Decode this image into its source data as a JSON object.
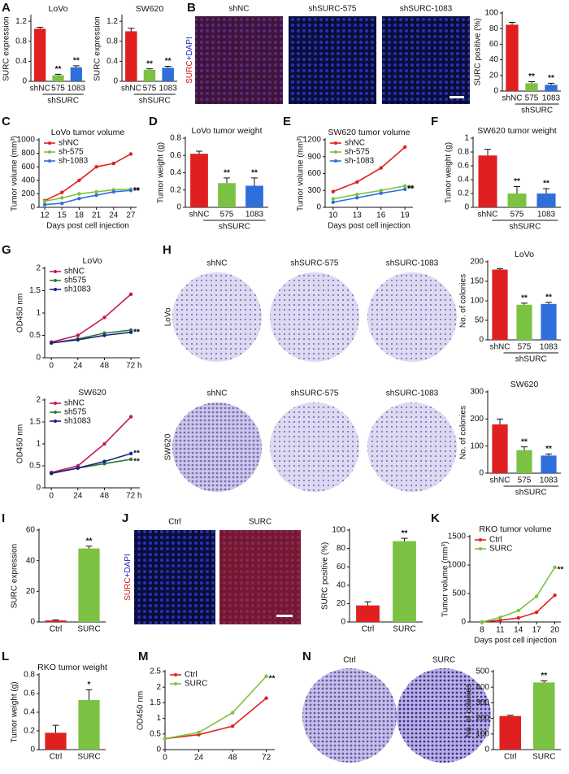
{
  "chart_data": [
    {
      "panel": "A",
      "type": "bar",
      "title": "LoVo",
      "ylabel": "SURC expression",
      "categories": [
        "shNC",
        "575",
        "1083"
      ],
      "values": [
        1.05,
        0.12,
        0.28
      ],
      "errors": [
        0.03,
        0.02,
        0.03
      ],
      "colors": [
        "#e02020",
        "#7cc242",
        "#2f6fdc"
      ],
      "annotations": [
        null,
        "**",
        "**"
      ],
      "group_label": "shSURC",
      "ylim": [
        0,
        1.3
      ],
      "yticks": [
        0,
        0.4,
        0.8,
        1.2
      ]
    },
    {
      "type": "bar",
      "title": "SW620",
      "ylabel": "SURC expression",
      "categories": [
        "shNC",
        "575",
        "1083"
      ],
      "values": [
        1.0,
        0.23,
        0.27
      ],
      "errors": [
        0.06,
        0.02,
        0.03
      ],
      "colors": [
        "#e02020",
        "#7cc242",
        "#2f6fdc"
      ],
      "annotations": [
        null,
        "**",
        "**"
      ],
      "group_label": "shSURC",
      "ylim": [
        0,
        1.3
      ],
      "yticks": [
        0,
        0.4,
        0.8,
        1.2
      ]
    },
    {
      "panel": "B",
      "type": "bar",
      "ylabel": "SURC positive (%)",
      "categories": [
        "shNC",
        "575",
        "1083"
      ],
      "values": [
        85,
        10,
        8
      ],
      "errors": [
        3,
        2,
        2
      ],
      "colors": [
        "#e02020",
        "#7cc242",
        "#2f6fdc"
      ],
      "annotations": [
        null,
        "**",
        "**"
      ],
      "group_label": "shSURC",
      "ylim": [
        0,
        100
      ],
      "yticks": [
        0,
        20,
        40,
        60,
        80,
        100
      ]
    },
    {
      "panel": "C",
      "type": "line",
      "title": "LoVo tumor volume",
      "ylabel": "Tumor volume (mm³)",
      "xlabel": "Days post cell injection",
      "x": [
        12,
        15,
        18,
        21,
        24,
        27
      ],
      "xlim": [
        11,
        28
      ],
      "xticks": [
        12,
        15,
        18,
        21,
        24,
        27
      ],
      "ylim": [
        0,
        1000
      ],
      "yticks": [
        0,
        200,
        400,
        600,
        800,
        1000
      ],
      "legend": "upper left",
      "series": [
        {
          "name": "shNC",
          "color": "#e02020",
          "values": [
            100,
            220,
            400,
            600,
            650,
            790
          ]
        },
        {
          "name": "sh-575",
          "color": "#7cc242",
          "values": [
            90,
            140,
            200,
            230,
            260,
            270
          ],
          "annotation": "**"
        },
        {
          "name": "sh-1083",
          "color": "#2f6fdc",
          "values": [
            40,
            60,
            130,
            180,
            230,
            250
          ],
          "annotation": "**"
        }
      ]
    },
    {
      "panel": "D",
      "type": "bar",
      "title": "LoVo tumor weight",
      "ylabel": "Tumor weight (g)",
      "categories": [
        "shNC",
        "575",
        "1083"
      ],
      "values": [
        0.62,
        0.28,
        0.25
      ],
      "errors": [
        0.03,
        0.06,
        0.09
      ],
      "colors": [
        "#e02020",
        "#7cc242",
        "#2f6fdc"
      ],
      "annotations": [
        null,
        "**",
        "**"
      ],
      "group_label": "shSURC",
      "ylim": [
        0,
        0.8
      ],
      "yticks": [
        0,
        0.2,
        0.4,
        0.6,
        0.8
      ]
    },
    {
      "panel": "E",
      "type": "line",
      "title": "SW620 tumor volume",
      "ylabel": "Tumor volume (mm³)",
      "xlabel": "Days post cell injection",
      "x": [
        10,
        13,
        16,
        19
      ],
      "xlim": [
        9,
        20
      ],
      "xticks": [
        10,
        13,
        16,
        19
      ],
      "ylim": [
        0,
        1200
      ],
      "yticks": [
        0,
        300,
        600,
        900,
        1200
      ],
      "legend": "upper left",
      "series": [
        {
          "name": "shNC",
          "color": "#e02020",
          "values": [
            280,
            450,
            700,
            1070
          ]
        },
        {
          "name": "sh-575",
          "color": "#7cc242",
          "values": [
            150,
            230,
            300,
            380
          ],
          "annotation": "**"
        },
        {
          "name": "sh-1083",
          "color": "#2f6fdc",
          "values": [
            90,
            170,
            250,
            320
          ],
          "annotation": "**"
        }
      ]
    },
    {
      "panel": "F",
      "type": "bar",
      "title": "SW620 tumor weight",
      "ylabel": "Tumor weight (g)",
      "categories": [
        "shNC",
        "575",
        "1083"
      ],
      "values": [
        0.75,
        0.2,
        0.2
      ],
      "errors": [
        0.09,
        0.1,
        0.07
      ],
      "colors": [
        "#e02020",
        "#7cc242",
        "#2f6fdc"
      ],
      "annotations": [
        null,
        "**",
        "**"
      ],
      "group_label": "shSURC",
      "ylim": [
        0,
        1.0
      ],
      "yticks": [
        0,
        0.2,
        0.4,
        0.6,
        0.8,
        1.0
      ]
    },
    {
      "panel": "G",
      "type": "line",
      "title": "LoVo",
      "ylabel": "OD450 nm",
      "x": [
        0,
        24,
        48,
        72
      ],
      "xlim": [
        -6,
        80
      ],
      "xticks": [
        0,
        24,
        48,
        {
          "value": 72,
          "label": "72 h"
        }
      ],
      "ylim": [
        0,
        2
      ],
      "yticks": [
        0,
        0.5,
        1,
        1.5,
        2
      ],
      "legend": "upper left",
      "series": [
        {
          "name": "shNC",
          "color": "#c2185b",
          "values": [
            0.35,
            0.5,
            0.9,
            1.42
          ]
        },
        {
          "name": "sh575",
          "color": "#2e7d32",
          "values": [
            0.33,
            0.42,
            0.55,
            0.62
          ],
          "annotation": "**"
        },
        {
          "name": "sh1083",
          "color": "#1a237e",
          "values": [
            0.33,
            0.4,
            0.5,
            0.57
          ],
          "annotation": "**"
        }
      ]
    },
    {
      "type": "line",
      "title": "SW620",
      "ylabel": "OD450 nm",
      "x": [
        0,
        24,
        48,
        72
      ],
      "xlim": [
        -6,
        80
      ],
      "xticks": [
        0,
        24,
        48,
        {
          "value": 72,
          "label": "72 h"
        }
      ],
      "ylim": [
        0,
        2
      ],
      "yticks": [
        0,
        0.5,
        1,
        1.5,
        2
      ],
      "legend": "upper left",
      "series": [
        {
          "name": "shNC",
          "color": "#c2185b",
          "values": [
            0.35,
            0.5,
            1.0,
            1.62
          ]
        },
        {
          "name": "sh575",
          "color": "#2e7d32",
          "values": [
            0.33,
            0.45,
            0.55,
            0.65
          ],
          "annotation": "**"
        },
        {
          "name": "sh1083",
          "color": "#1a237e",
          "values": [
            0.33,
            0.45,
            0.6,
            0.78
          ],
          "annotation": "**"
        }
      ]
    },
    {
      "panel": "H",
      "type": "bar",
      "title": "LoVo",
      "ylabel": "No. of colonies",
      "categories": [
        "shNC",
        "575",
        "1083"
      ],
      "values": [
        180,
        90,
        92
      ],
      "errors": [
        2,
        4,
        4
      ],
      "colors": [
        "#e02020",
        "#7cc242",
        "#2f6fdc"
      ],
      "annotations": [
        null,
        "**",
        "**"
      ],
      "group_label": "shSURC",
      "ylim": [
        0,
        200
      ],
      "yticks": [
        0,
        50,
        100,
        150,
        200
      ]
    },
    {
      "type": "bar",
      "title": "SW620",
      "ylabel": "No. of colonies",
      "categories": [
        "shNC",
        "575",
        "1083"
      ],
      "values": [
        180,
        85,
        65
      ],
      "errors": [
        20,
        12,
        6
      ],
      "colors": [
        "#e02020",
        "#7cc242",
        "#2f6fdc"
      ],
      "annotations": [
        null,
        "**",
        "**"
      ],
      "group_label": "shSURC",
      "ylim": [
        0,
        300
      ],
      "yticks": [
        0,
        100,
        200,
        300
      ]
    },
    {
      "panel": "I",
      "type": "bar",
      "ylabel": "SURC expression",
      "categories": [
        "Ctrl",
        "SURC"
      ],
      "values": [
        1,
        48
      ],
      "errors": [
        0.3,
        1.5
      ],
      "colors": [
        "#e02020",
        "#7cc242"
      ],
      "annotations": [
        null,
        "**"
      ],
      "ylim": [
        0,
        60
      ],
      "yticks": [
        0,
        20,
        40,
        60
      ]
    },
    {
      "panel": "J",
      "type": "bar",
      "ylabel": "SURC positive (%)",
      "categories": [
        "Ctrl",
        "SURC"
      ],
      "values": [
        18,
        88
      ],
      "errors": [
        4,
        3
      ],
      "colors": [
        "#e02020",
        "#7cc242"
      ],
      "annotations": [
        null,
        "**"
      ],
      "ylim": [
        0,
        100
      ],
      "yticks": [
        0,
        20,
        40,
        60,
        80,
        100
      ]
    },
    {
      "panel": "K",
      "type": "line",
      "title": "RKO tumor volume",
      "ylabel": "Tumor volume (mm³)",
      "xlabel": "Days post cell injection",
      "x": [
        8,
        11,
        14,
        17,
        20
      ],
      "xlim": [
        6,
        21
      ],
      "xticks": [
        8,
        11,
        14,
        17,
        20
      ],
      "ylim": [
        0,
        1500
      ],
      "yticks": [
        0,
        500,
        1000,
        1500
      ],
      "legend": "upper left",
      "series": [
        {
          "name": "Ctrl",
          "color": "#e02020",
          "values": [
            0,
            30,
            70,
            170,
            470
          ]
        },
        {
          "name": "SURC",
          "color": "#7cc242",
          "values": [
            0,
            80,
            200,
            450,
            960
          ],
          "annotation": "**"
        }
      ]
    },
    {
      "panel": "L",
      "type": "bar",
      "title": "RKO tumor weight",
      "ylabel": "Tumor weight (g)",
      "categories": [
        "Ctrl",
        "SURC"
      ],
      "values": [
        0.18,
        0.53
      ],
      "errors": [
        0.08,
        0.11
      ],
      "colors": [
        "#e02020",
        "#7cc242"
      ],
      "annotations": [
        null,
        "*"
      ],
      "ylim": [
        0,
        0.8
      ],
      "yticks": [
        0,
        0.2,
        0.4,
        0.6,
        0.8
      ]
    },
    {
      "panel": "M",
      "type": "line",
      "ylabel": "OD450 nm",
      "x": [
        0,
        24,
        48,
        72
      ],
      "xlim": [
        0,
        78
      ],
      "xticks": [
        0,
        24,
        48,
        72
      ],
      "ylim": [
        0,
        2.5
      ],
      "yticks": [
        0,
        0.5,
        1,
        1.5,
        2,
        2.5
      ],
      "legend": "upper left",
      "series": [
        {
          "name": "Ctrl",
          "color": "#e02020",
          "values": [
            0.35,
            0.48,
            0.75,
            1.65
          ]
        },
        {
          "name": "SURC",
          "color": "#7cc242",
          "values": [
            0.35,
            0.55,
            1.18,
            2.35
          ],
          "annotation": "**"
        }
      ]
    },
    {
      "panel": "N",
      "type": "bar",
      "ylabel": "No. of colonies",
      "categories": [
        "Ctrl",
        "SURC"
      ],
      "values": [
        215,
        430
      ],
      "errors": [
        5,
        10
      ],
      "colors": [
        "#e02020",
        "#7cc242"
      ],
      "annotations": [
        null,
        "**"
      ],
      "ylim": [
        0,
        500
      ],
      "yticks": [
        0,
        100,
        200,
        300,
        400,
        500
      ]
    }
  ],
  "images": {
    "B": {
      "stain": [
        "SURC",
        "+DAPI"
      ],
      "columns": [
        "shNC",
        "shSURC-575",
        "shSURC-1083"
      ]
    },
    "H": {
      "rows": [
        {
          "label": "LoVo",
          "columns": [
            "shNC",
            "shSURC-575",
            "shSURC-1083"
          ]
        },
        {
          "label": "SW620",
          "columns": [
            "shNC",
            "shSURC-575",
            "shSURC-1083"
          ]
        }
      ]
    },
    "J": {
      "stain": [
        "SURC",
        "+DAPI"
      ],
      "columns": [
        "Ctrl",
        "SURC"
      ]
    },
    "N": {
      "columns": [
        "Ctrl",
        "SURC"
      ]
    }
  }
}
